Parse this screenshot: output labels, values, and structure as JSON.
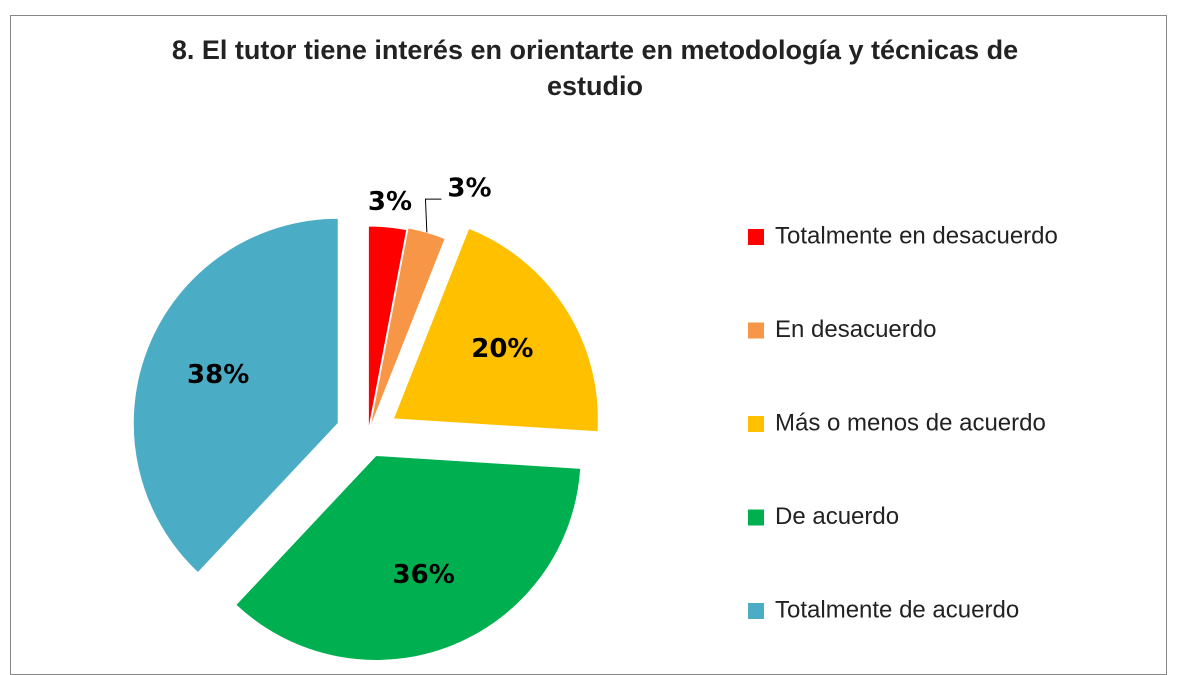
{
  "chart_data": {
    "type": "pie",
    "title": "8. El tutor tiene interés en orientarte en metodología y técnicas de estudio",
    "categories": [
      "Totalmente en desacuerdo",
      "En desacuerdo",
      "Más o menos de acuerdo",
      "De acuerdo",
      "Totalmente de acuerdo"
    ],
    "values": [
      3,
      3,
      20,
      36,
      38
    ],
    "value_labels": [
      "3%",
      "3%",
      "20%",
      "36%",
      "38%"
    ],
    "colors": [
      "#ff0000",
      "#f79646",
      "#ffc000",
      "#00b050",
      "#4bacc6"
    ],
    "legend": "right"
  }
}
